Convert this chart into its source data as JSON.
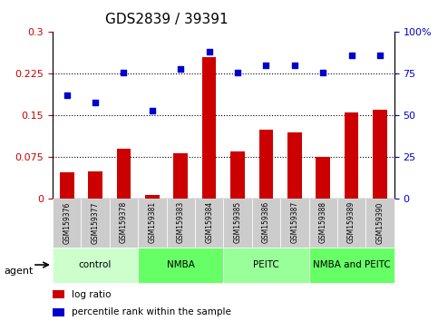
{
  "title": "GDS2839 / 39391",
  "samples": [
    "GSM159376",
    "GSM159377",
    "GSM159378",
    "GSM159381",
    "GSM159383",
    "GSM159384",
    "GSM159385",
    "GSM159386",
    "GSM159387",
    "GSM159388",
    "GSM159389",
    "GSM159390"
  ],
  "log_ratio": [
    0.048,
    0.05,
    0.09,
    0.008,
    0.082,
    0.255,
    0.085,
    0.125,
    0.12,
    0.075,
    0.155,
    0.16
  ],
  "percentile_rank": [
    62,
    58,
    76,
    53,
    78,
    88,
    76,
    80,
    80,
    76,
    86,
    86
  ],
  "groups": [
    {
      "label": "control",
      "start": 0,
      "end": 3,
      "color": "#ccffcc"
    },
    {
      "label": "NMBA",
      "start": 3,
      "end": 6,
      "color": "#66ff66"
    },
    {
      "label": "PEITC",
      "start": 6,
      "end": 9,
      "color": "#99ff99"
    },
    {
      "label": "NMBA and PEITC",
      "start": 9,
      "end": 12,
      "color": "#66ff66"
    }
  ],
  "bar_color": "#cc0000",
  "dot_color": "#0000cc",
  "ylim_left": [
    0,
    0.3
  ],
  "ylim_right": [
    0,
    100
  ],
  "yticks_left": [
    0,
    0.075,
    0.15,
    0.225,
    0.3
  ],
  "yticks_right": [
    0,
    25,
    50,
    75,
    100
  ],
  "ytick_labels_left": [
    "0",
    "0.075",
    "0.15",
    "0.225",
    "0.3"
  ],
  "ytick_labels_right": [
    "0",
    "25",
    "50",
    "75",
    "100%"
  ],
  "legend_items": [
    {
      "label": "log ratio",
      "color": "#cc0000"
    },
    {
      "label": "percentile rank within the sample",
      "color": "#0000cc"
    }
  ],
  "agent_label": "agent",
  "background_color": "#ffffff",
  "plot_bg_color": "#ffffff",
  "tick_bg_color": "#cccccc"
}
